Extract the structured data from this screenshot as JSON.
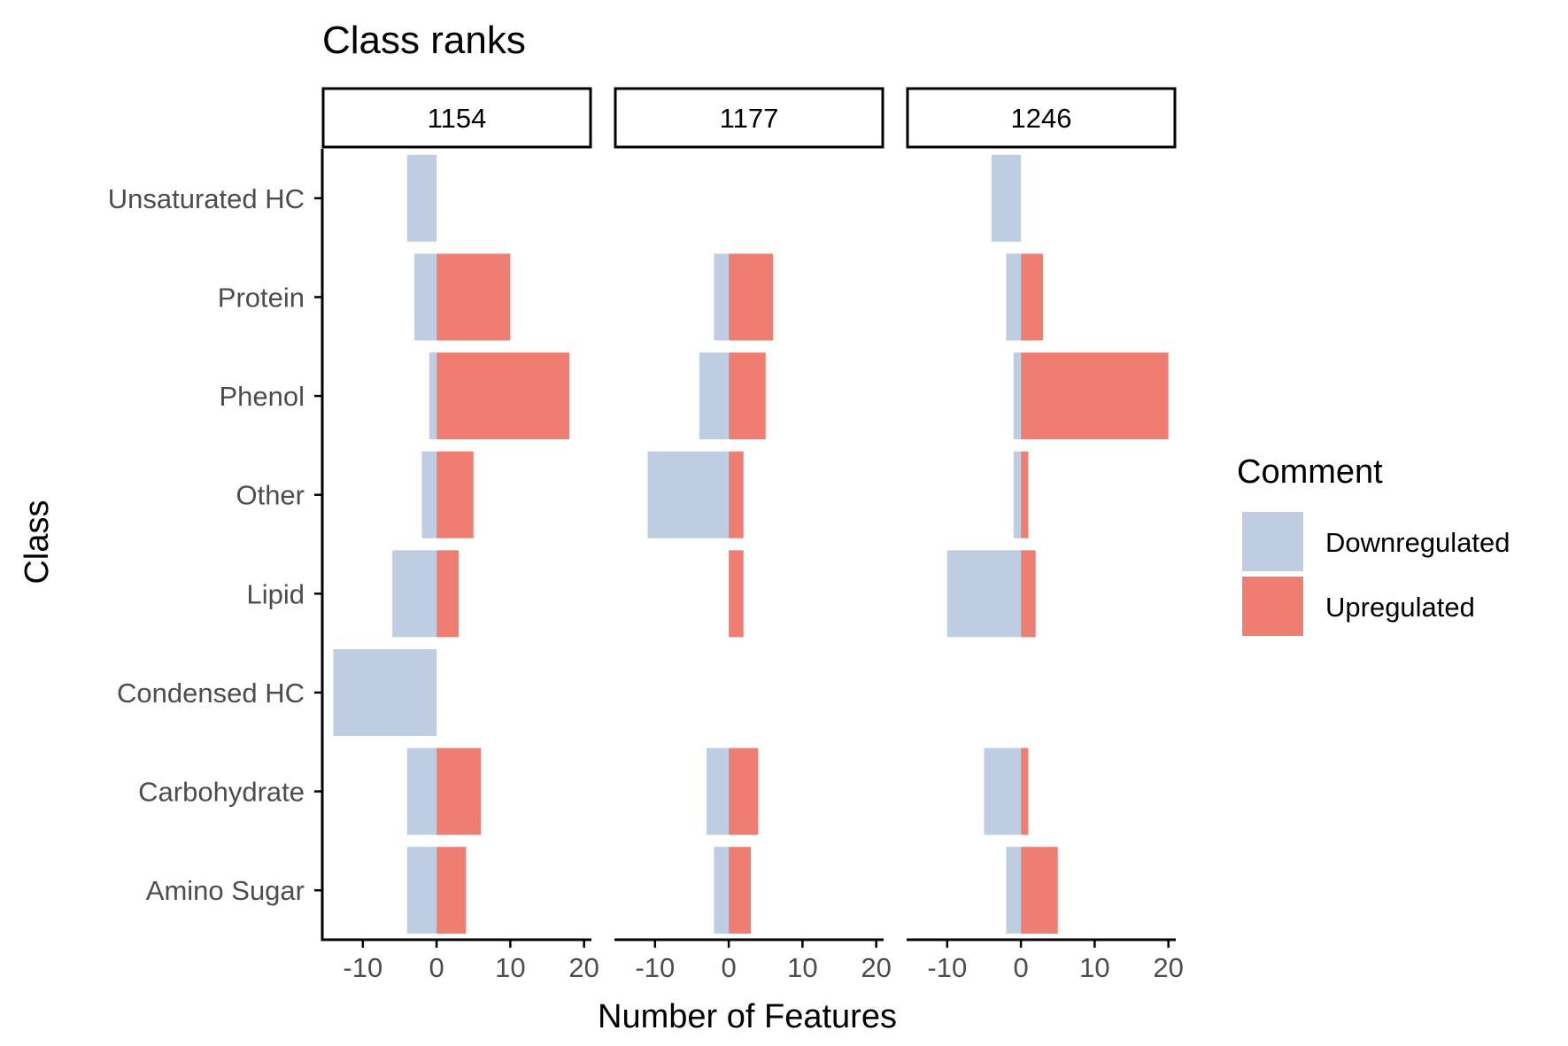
{
  "chart_data": {
    "type": "bar",
    "orientation": "horizontal",
    "faceted": true,
    "title": "Class ranks",
    "xlabel": "Number of Features",
    "ylabel": "Class",
    "xlim": [
      -15.5,
      21
    ],
    "xticks": [
      -10,
      0,
      10,
      20
    ],
    "xtick_labels": [
      "-10",
      "0",
      "10",
      "20"
    ],
    "grid": false,
    "legend": {
      "title": "Comment",
      "position": "right",
      "entries": [
        {
          "name": "Downregulated",
          "color": "#bfcde3"
        },
        {
          "name": "Upregulated",
          "color": "#ee7e72"
        }
      ]
    },
    "categories": [
      "Unsaturated HC",
      "Protein",
      "Phenol",
      "Other",
      "Lipid",
      "Condensed HC",
      "Carbohydrate",
      "Amino Sugar"
    ],
    "facets": [
      {
        "label": "1154",
        "series": [
          {
            "name": "Downregulated",
            "values": [
              -4,
              -3,
              -1,
              -2,
              -6,
              -14,
              -4,
              -4
            ]
          },
          {
            "name": "Upregulated",
            "values": [
              0,
              10,
              18,
              5,
              3,
              0,
              6,
              4
            ]
          }
        ]
      },
      {
        "label": "1177",
        "series": [
          {
            "name": "Downregulated",
            "values": [
              0,
              -2,
              -4,
              -11,
              0,
              0,
              -3,
              -2
            ]
          },
          {
            "name": "Upregulated",
            "values": [
              0,
              6,
              5,
              2,
              2,
              0,
              4,
              3
            ]
          }
        ]
      },
      {
        "label": "1246",
        "series": [
          {
            "name": "Downregulated",
            "values": [
              -4,
              -2,
              -1,
              -1,
              -10,
              0,
              -5,
              -2
            ]
          },
          {
            "name": "Upregulated",
            "values": [
              0,
              3,
              20,
              1,
              2,
              0,
              1,
              5
            ]
          }
        ]
      }
    ]
  }
}
